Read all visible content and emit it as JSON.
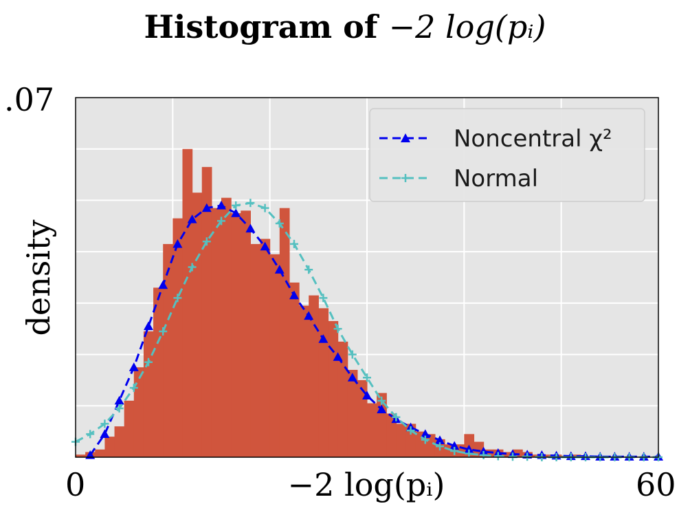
{
  "title": {
    "prefix": "Histogram of",
    "expr": "−2 log(pᵢ)"
  },
  "chart_data": {
    "type": "bar",
    "title": "Histogram of −2 log(pᵢ)",
    "xlabel": "−2 log(pᵢ)",
    "ylabel": "density",
    "xlim": [
      0,
      60
    ],
    "ylim": [
      0,
      0.07
    ],
    "x_tick_labels": [
      "0",
      "60"
    ],
    "y_tick_labels": [
      ".07"
    ],
    "grid": true,
    "legend_position": "top-right",
    "colors": {
      "background": "#e5e5e5",
      "grid": "#ffffff",
      "histogram": "#d0553d",
      "noncentral": "#0000ee",
      "normal": "#55c0c0"
    },
    "histogram": {
      "bin_width": 1,
      "bin_starts": [
        0,
        1,
        2,
        3,
        4,
        5,
        6,
        7,
        8,
        9,
        10,
        11,
        12,
        13,
        14,
        15,
        16,
        17,
        18,
        19,
        20,
        21,
        22,
        23,
        24,
        25,
        26,
        27,
        28,
        29,
        30,
        31,
        32,
        33,
        34,
        35,
        36,
        37,
        38,
        39,
        40,
        41,
        42,
        43,
        44,
        45,
        46,
        47,
        48,
        49,
        50,
        51,
        52,
        53,
        54,
        55,
        56,
        57,
        58,
        59
      ],
      "density": [
        0.0005,
        0.001,
        0.0015,
        0.004,
        0.006,
        0.011,
        0.0175,
        0.0245,
        0.033,
        0.0415,
        0.0465,
        0.06,
        0.0515,
        0.0565,
        0.0485,
        0.0505,
        0.0475,
        0.048,
        0.0415,
        0.0425,
        0.0395,
        0.0485,
        0.034,
        0.0295,
        0.0315,
        0.029,
        0.0265,
        0.0225,
        0.017,
        0.015,
        0.0105,
        0.0125,
        0.0085,
        0.0065,
        0.0065,
        0.005,
        0.0045,
        0.0035,
        0.0025,
        0.0025,
        0.0045,
        0.003,
        0.0015,
        0.0015,
        0.001,
        0.0015,
        0.001,
        0.0005,
        0.0005,
        0.0005,
        0.0003,
        0.0005,
        0.0002,
        0.0002,
        0.0002,
        0.0001,
        0.0001,
        0.0001,
        0,
        0
      ]
    },
    "series": [
      {
        "name": "Noncentral χ²",
        "style": "dashed",
        "marker": "triangle",
        "x": [
          1.5,
          3,
          4.5,
          6,
          7.5,
          9,
          10.5,
          12,
          13.5,
          15,
          16.5,
          18,
          19.5,
          21,
          22.5,
          24,
          25.5,
          27,
          28.5,
          30,
          31.5,
          33,
          34.5,
          36,
          37.5,
          39,
          40.5,
          42,
          43.5,
          45,
          46.5,
          48,
          49.5,
          51,
          52.5,
          54,
          55.5,
          57,
          58.5,
          60
        ],
        "y": [
          0.0004,
          0.0045,
          0.011,
          0.0175,
          0.0255,
          0.0335,
          0.0415,
          0.0463,
          0.0485,
          0.049,
          0.0475,
          0.0445,
          0.041,
          0.0365,
          0.0315,
          0.0275,
          0.023,
          0.0195,
          0.0155,
          0.012,
          0.0093,
          0.0074,
          0.0058,
          0.0045,
          0.0033,
          0.0022,
          0.0015,
          0.0011,
          0.0008,
          0.0006,
          0.0005,
          0.0004,
          0.0003,
          0.0002,
          0.0002,
          0.0001,
          0.0001,
          0.0001,
          0.0001,
          0.0001
        ]
      },
      {
        "name": "Normal",
        "style": "dashed",
        "marker": "plus",
        "x": [
          0,
          1.5,
          3,
          4.5,
          6,
          7.5,
          9,
          10.5,
          12,
          13.5,
          15,
          16.5,
          18,
          19.5,
          21,
          22.5,
          24,
          25.5,
          27,
          28.5,
          30,
          31.5,
          33,
          34.5,
          36,
          37.5,
          39,
          40.5,
          42,
          43.5,
          45,
          46.5,
          48,
          49.5,
          51,
          52.5,
          54,
          55.5,
          57,
          58.5,
          60
        ],
        "y": [
          0.003,
          0.0045,
          0.0065,
          0.0095,
          0.0135,
          0.0185,
          0.0245,
          0.031,
          0.037,
          0.042,
          0.046,
          0.049,
          0.0495,
          0.0485,
          0.0455,
          0.0415,
          0.0365,
          0.031,
          0.025,
          0.02,
          0.0155,
          0.011,
          0.0078,
          0.0052,
          0.0034,
          0.0021,
          0.0012,
          0.0007,
          0.0004,
          0.0002,
          0.0001,
          0.0001,
          0,
          0,
          0,
          0,
          0,
          0,
          0,
          0,
          0
        ]
      }
    ]
  }
}
